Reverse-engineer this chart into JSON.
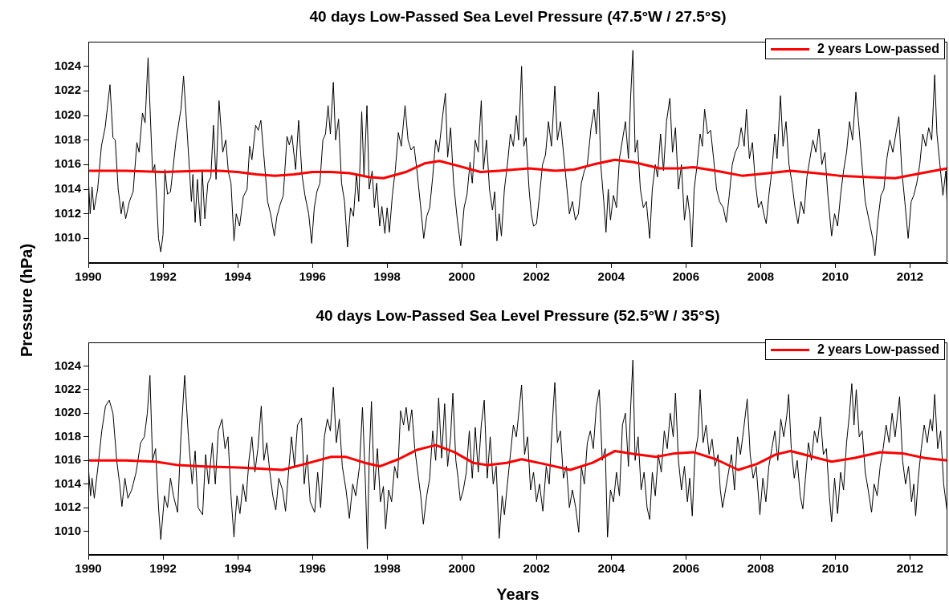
{
  "chart_data": [
    {
      "type": "line",
      "title": "40 days Low-Passed Sea Level Pressure (47.5°W / 27.5°S)",
      "ylabel": "Pressure (hPa)",
      "xlim": [
        1990,
        2013
      ],
      "xticks": [
        1990,
        1992,
        1994,
        1996,
        1998,
        2000,
        2002,
        2004,
        2006,
        2008,
        2010,
        2012
      ],
      "ylim": [
        1008,
        1026
      ],
      "yticks": [
        1010,
        1012,
        1014,
        1016,
        1018,
        1020,
        1022,
        1024
      ],
      "legend": "top right",
      "series": [
        {
          "color": "#000000",
          "x": [
            1990.0,
            1990.05,
            1990.1,
            1990.15,
            1990.25,
            1990.35,
            1990.45,
            1990.58,
            1990.66,
            1990.72,
            1990.8,
            1990.88,
            1990.93,
            1991.0,
            1991.1,
            1991.2,
            1991.3,
            1991.36,
            1991.45,
            1991.52,
            1991.6,
            1991.66,
            1991.72,
            1991.78,
            1991.88,
            1991.94,
            1992.0,
            1992.05,
            1992.12,
            1992.2,
            1992.35,
            1992.48,
            1992.55,
            1992.66,
            1992.76,
            1992.8,
            1992.86,
            1992.92,
            1993.0,
            1993.05,
            1993.12,
            1993.2,
            1993.28,
            1993.35,
            1993.42,
            1993.5,
            1993.6,
            1993.68,
            1993.75,
            1993.82,
            1993.9,
            1993.96,
            1994.05,
            1994.15,
            1994.25,
            1994.32,
            1994.38,
            1994.48,
            1994.55,
            1994.62,
            1994.72,
            1994.8,
            1994.88,
            1994.98,
            1995.05,
            1995.14,
            1995.22,
            1995.32,
            1995.38,
            1995.45,
            1995.55,
            1995.63,
            1995.72,
            1995.8,
            1995.9,
            1995.98,
            1996.05,
            1996.12,
            1996.2,
            1996.28,
            1996.35,
            1996.42,
            1996.48,
            1996.56,
            1996.62,
            1996.7,
            1996.78,
            1996.86,
            1996.94,
            1997.02,
            1997.1,
            1997.18,
            1997.24,
            1997.32,
            1997.38,
            1997.46,
            1997.52,
            1997.6,
            1997.66,
            1997.72,
            1997.8,
            1997.86,
            1997.94,
            1998.0,
            1998.06,
            1998.14,
            1998.22,
            1998.3,
            1998.38,
            1998.48,
            1998.56,
            1998.64,
            1998.72,
            1998.8,
            1998.9,
            1998.98,
            1999.06,
            1999.14,
            1999.22,
            1999.3,
            1999.38,
            1999.48,
            1999.56,
            1999.62,
            1999.7,
            1999.78,
            1999.88,
            1999.97,
            2000.06,
            2000.14,
            2000.22,
            2000.28,
            2000.36,
            2000.44,
            2000.52,
            2000.58,
            2000.66,
            2000.74,
            2000.82,
            2000.88,
            2000.94,
            2001.0,
            2001.06,
            2001.14,
            2001.22,
            2001.3,
            2001.38,
            2001.46,
            2001.52,
            2001.6,
            2001.66,
            2001.72,
            2001.8,
            2001.86,
            2001.92,
            2002.0,
            2002.08,
            2002.16,
            2002.24,
            2002.32,
            2002.4,
            2002.49,
            2002.56,
            2002.64,
            2002.72,
            2002.8,
            2002.88,
            2002.96,
            2003.04,
            2003.12,
            2003.2,
            2003.28,
            2003.36,
            2003.46,
            2003.54,
            2003.6,
            2003.66,
            2003.72,
            2003.8,
            2003.86,
            2003.92,
            2003.98,
            2004.06,
            2004.14,
            2004.22,
            2004.3,
            2004.38,
            2004.46,
            2004.52,
            2004.58,
            2004.64,
            2004.7,
            2004.78,
            2004.86,
            2004.94,
            2005.03,
            2005.1,
            2005.18,
            2005.24,
            2005.32,
            2005.4,
            2005.48,
            2005.57,
            2005.64,
            2005.72,
            2005.8,
            2005.88,
            2005.96,
            2006.04,
            2006.1,
            2006.16,
            2006.22,
            2006.3,
            2006.38,
            2006.44,
            2006.5,
            2006.58,
            2006.66,
            2006.74,
            2006.82,
            2006.9,
            2007.0,
            2007.08,
            2007.16,
            2007.24,
            2007.32,
            2007.4,
            2007.48,
            2007.56,
            2007.62,
            2007.7,
            2007.78,
            2007.86,
            2007.94,
            2008.02,
            2008.1,
            2008.15,
            2008.22,
            2008.3,
            2008.38,
            2008.44,
            2008.53,
            2008.6,
            2008.68,
            2008.76,
            2008.84,
            2008.92,
            2009.0,
            2009.08,
            2009.16,
            2009.24,
            2009.32,
            2009.4,
            2009.48,
            2009.56,
            2009.64,
            2009.72,
            2009.8,
            2009.9,
            2009.98,
            2010.06,
            2010.14,
            2010.22,
            2010.3,
            2010.38,
            2010.46,
            2010.55,
            2010.62,
            2010.7,
            2010.8,
            2010.9,
            2011.0,
            2011.06,
            2011.14,
            2011.22,
            2011.3,
            2011.38,
            2011.46,
            2011.54,
            2011.62,
            2011.7,
            2011.78,
            2011.86,
            2011.95,
            2012.03,
            2012.1,
            2012.18,
            2012.26,
            2012.34,
            2012.42,
            2012.5,
            2012.58,
            2012.66,
            2012.72,
            2012.8,
            2012.88,
            2012.96,
            2013.0
          ],
          "values": [
            1015.0,
            1012.0,
            1014.2,
            1012.3,
            1014.0,
            1017.5,
            1019.0,
            1022.5,
            1018.2,
            1018.0,
            1014.0,
            1012.0,
            1013.0,
            1011.6,
            1013.0,
            1013.8,
            1017.8,
            1017.0,
            1020.2,
            1019.4,
            1024.7,
            1020.0,
            1015.4,
            1016.0,
            1010.0,
            1008.9,
            1010.3,
            1015.6,
            1013.6,
            1013.8,
            1018.0,
            1020.5,
            1023.2,
            1018.0,
            1013.0,
            1015.2,
            1011.3,
            1014.8,
            1011.0,
            1015.5,
            1011.6,
            1014.5,
            1015.0,
            1019.2,
            1014.8,
            1021.2,
            1017.0,
            1018.0,
            1015.4,
            1014.5,
            1009.8,
            1012.0,
            1011.0,
            1013.4,
            1014.0,
            1017.5,
            1016.4,
            1019.2,
            1018.8,
            1019.6,
            1016.0,
            1013.0,
            1012.0,
            1010.2,
            1011.8,
            1012.8,
            1013.5,
            1018.3,
            1017.6,
            1018.4,
            1015.6,
            1019.6,
            1015.2,
            1013.5,
            1012.0,
            1009.6,
            1012.5,
            1013.8,
            1014.5,
            1018.0,
            1018.5,
            1020.8,
            1018.5,
            1022.7,
            1018.0,
            1019.7,
            1014.5,
            1013.0,
            1009.3,
            1012.5,
            1011.8,
            1015.3,
            1013.0,
            1020.3,
            1015.0,
            1020.8,
            1014.0,
            1015.5,
            1012.5,
            1014.5,
            1011.0,
            1012.6,
            1010.4,
            1012.5,
            1010.5,
            1013.5,
            1015.6,
            1018.6,
            1017.5,
            1020.8,
            1018.0,
            1017.2,
            1017.5,
            1015.5,
            1012.5,
            1010.0,
            1011.8,
            1012.5,
            1015.0,
            1018.0,
            1017.0,
            1019.8,
            1021.8,
            1016.6,
            1019.0,
            1014.5,
            1011.5,
            1009.4,
            1012.5,
            1013.6,
            1016.2,
            1014.5,
            1018.0,
            1017.0,
            1021.2,
            1015.6,
            1018.0,
            1014.0,
            1012.3,
            1013.8,
            1009.8,
            1012.0,
            1010.2,
            1014.0,
            1016.0,
            1018.5,
            1017.5,
            1020.0,
            1018.0,
            1024.0,
            1017.5,
            1018.2,
            1014.0,
            1012.0,
            1011.0,
            1011.2,
            1013.5,
            1016.0,
            1016.8,
            1019.5,
            1017.5,
            1022.4,
            1018.0,
            1019.5,
            1017.0,
            1014.5,
            1012.0,
            1013.0,
            1011.5,
            1012.0,
            1014.5,
            1015.5,
            1016.0,
            1019.0,
            1020.5,
            1018.5,
            1021.9,
            1016.0,
            1013.0,
            1010.5,
            1014.0,
            1011.5,
            1013.5,
            1012.5,
            1016.5,
            1018.0,
            1019.5,
            1016.5,
            1021.5,
            1025.3,
            1017.0,
            1018.0,
            1014.0,
            1012.5,
            1013.0,
            1010.0,
            1014.0,
            1016.0,
            1015.0,
            1018.5,
            1015.5,
            1019.5,
            1021.4,
            1017.0,
            1019.0,
            1014.0,
            1016.0,
            1011.5,
            1013.5,
            1012.0,
            1009.3,
            1014.0,
            1016.0,
            1018.5,
            1017.5,
            1020.5,
            1018.5,
            1018.8,
            1016.5,
            1014.0,
            1013.0,
            1012.5,
            1011.3,
            1013.5,
            1016.0,
            1017.0,
            1017.5,
            1019.0,
            1017.5,
            1020.5,
            1016.5,
            1017.8,
            1014.5,
            1012.5,
            1013.0,
            1011.8,
            1011.2,
            1013.5,
            1015.5,
            1018.5,
            1016.5,
            1021.6,
            1017.5,
            1019.5,
            1016.0,
            1014.5,
            1012.5,
            1011.2,
            1013.0,
            1012.0,
            1015.0,
            1016.5,
            1018.0,
            1017.0,
            1018.9,
            1016.0,
            1017.0,
            1013.5,
            1010.2,
            1012.0,
            1011.0,
            1013.5,
            1015.5,
            1017.0,
            1019.5,
            1018.0,
            1021.9,
            1019.5,
            1016.5,
            1013.0,
            1011.5,
            1010.0,
            1008.6,
            1011.5,
            1013.5,
            1014.0,
            1016.5,
            1018.0,
            1017.0,
            1018.5,
            1019.9,
            1015.5,
            1013.0,
            1010.0,
            1013.0,
            1013.5,
            1014.5,
            1016.0,
            1018.5,
            1017.5,
            1019.0,
            1018.0,
            1023.3,
            1018.5,
            1016.0,
            1013.5,
            1015.5,
            1012.0
          ]
        },
        {
          "name": "2 years Low-passed",
          "color": "#ff0000",
          "x": [
            1990,
            1991,
            1992,
            1993,
            1993.5,
            1994,
            1994.5,
            1995,
            1995.5,
            1996,
            1996.5,
            1997,
            1997.5,
            1997.9,
            1998.5,
            1999,
            1999.4,
            1999.9,
            2000.5,
            2001,
            2001.8,
            2002.5,
            2003,
            2003.5,
            2004.1,
            2004.6,
            2005.3,
            2005.8,
            2006.2,
            2006.8,
            2007.5,
            2008.2,
            2008.8,
            2009.5,
            2010.1,
            2010.8,
            2011.6,
            2012.3,
            2013
          ],
          "values": [
            1015.5,
            1015.5,
            1015.4,
            1015.5,
            1015.5,
            1015.4,
            1015.2,
            1015.1,
            1015.2,
            1015.4,
            1015.4,
            1015.3,
            1015.0,
            1014.9,
            1015.4,
            1016.1,
            1016.3,
            1015.9,
            1015.4,
            1015.5,
            1015.7,
            1015.5,
            1015.6,
            1016.0,
            1016.4,
            1016.2,
            1015.7,
            1015.7,
            1015.8,
            1015.5,
            1015.1,
            1015.3,
            1015.5,
            1015.3,
            1015.1,
            1015.0,
            1014.9,
            1015.3,
            1015.7
          ]
        }
      ]
    },
    {
      "type": "line",
      "title": "40 days Low-Passed Sea Level Pressure (52.5°W / 35°S)",
      "xlabel": "Years",
      "xlim": [
        1990,
        2013
      ],
      "xticks": [
        1990,
        1992,
        1994,
        1996,
        1998,
        2000,
        2002,
        2004,
        2006,
        2008,
        2010,
        2012
      ],
      "ylim": [
        1008,
        1026
      ],
      "yticks": [
        1010,
        1012,
        1014,
        1016,
        1018,
        1020,
        1022,
        1024
      ],
      "legend": "top right",
      "series": [
        {
          "color": "#000000",
          "x": [
            1990.0,
            1990.06,
            1990.1,
            1990.16,
            1990.26,
            1990.36,
            1990.46,
            1990.56,
            1990.66,
            1990.76,
            1990.84,
            1990.9,
            1990.98,
            1991.06,
            1991.16,
            1991.28,
            1991.4,
            1991.5,
            1991.58,
            1991.65,
            1991.72,
            1991.8,
            1991.88,
            1991.94,
            1992.04,
            1992.12,
            1992.2,
            1992.28,
            1992.39,
            1992.48,
            1992.58,
            1992.68,
            1992.78,
            1992.86,
            1992.94,
            1993.06,
            1993.14,
            1993.22,
            1993.32,
            1993.4,
            1993.48,
            1993.58,
            1993.66,
            1993.74,
            1993.82,
            1993.9,
            1993.98,
            1994.06,
            1994.14,
            1994.22,
            1994.3,
            1994.38,
            1994.46,
            1994.54,
            1994.63,
            1994.7,
            1994.78,
            1994.86,
            1994.94,
            1995.02,
            1995.1,
            1995.2,
            1995.28,
            1995.36,
            1995.44,
            1995.52,
            1995.6,
            1995.71,
            1995.78,
            1995.86,
            1995.94,
            1996.06,
            1996.14,
            1996.22,
            1996.32,
            1996.4,
            1996.48,
            1996.56,
            1996.64,
            1996.72,
            1996.8,
            1996.9,
            1996.99,
            1997.08,
            1997.16,
            1997.26,
            1997.34,
            1997.42,
            1997.47,
            1997.52,
            1997.58,
            1997.66,
            1997.74,
            1997.82,
            1997.9,
            1997.96,
            1998.04,
            1998.12,
            1998.2,
            1998.28,
            1998.36,
            1998.44,
            1998.51,
            1998.58,
            1998.66,
            1998.74,
            1998.82,
            1998.9,
            1998.97,
            1999.06,
            1999.14,
            1999.22,
            1999.3,
            1999.38,
            1999.46,
            1999.54,
            1999.62,
            1999.7,
            1999.76,
            1999.84,
            1999.9,
            1999.96,
            2000.04,
            2000.12,
            2000.2,
            2000.28,
            2000.36,
            2000.44,
            2000.52,
            2000.6,
            2000.68,
            2000.76,
            2000.84,
            2000.92,
            2001.0,
            2001.08,
            2001.14,
            2001.22,
            2001.3,
            2001.38,
            2001.46,
            2001.54,
            2001.6,
            2001.68,
            2001.76,
            2001.84,
            2001.92,
            2002.0,
            2002.08,
            2002.17,
            2002.26,
            2002.34,
            2002.42,
            2002.49,
            2002.56,
            2002.64,
            2002.72,
            2002.8,
            2002.88,
            2002.96,
            2003.05,
            2003.13,
            2003.2,
            2003.28,
            2003.36,
            2003.44,
            2003.52,
            2003.6,
            2003.68,
            2003.76,
            2003.84,
            2003.9,
            2003.98,
            2004.06,
            2004.14,
            2004.22,
            2004.3,
            2004.38,
            2004.46,
            2004.52,
            2004.58,
            2004.64,
            2004.72,
            2004.8,
            2004.88,
            2004.96,
            2005.03,
            2005.1,
            2005.18,
            2005.26,
            2005.34,
            2005.42,
            2005.5,
            2005.58,
            2005.66,
            2005.72,
            2005.8,
            2005.88,
            2005.96,
            2006.04,
            2006.1,
            2006.17,
            2006.24,
            2006.32,
            2006.38,
            2006.46,
            2006.54,
            2006.62,
            2006.7,
            2006.78,
            2006.86,
            2006.92,
            2006.98,
            2007.06,
            2007.14,
            2007.22,
            2007.3,
            2007.38,
            2007.46,
            2007.54,
            2007.64,
            2007.72,
            2007.8,
            2007.88,
            2007.98,
            2008.06,
            2008.14,
            2008.22,
            2008.3,
            2008.38,
            2008.46,
            2008.54,
            2008.62,
            2008.7,
            2008.75,
            2008.82,
            2008.9,
            2008.98,
            2009.06,
            2009.13,
            2009.2,
            2009.28,
            2009.36,
            2009.44,
            2009.52,
            2009.6,
            2009.68,
            2009.76,
            2009.84,
            2009.9,
            2009.98,
            2010.06,
            2010.14,
            2010.22,
            2010.3,
            2010.38,
            2010.44,
            2010.5,
            2010.56,
            2010.64,
            2010.72,
            2010.8,
            2010.88,
            2010.97,
            2011.04,
            2011.12,
            2011.2,
            2011.28,
            2011.36,
            2011.44,
            2011.52,
            2011.6,
            2011.72,
            2011.8,
            2011.88,
            2011.96,
            2012.04,
            2012.1,
            2012.15,
            2012.22,
            2012.3,
            2012.38,
            2012.46,
            2012.54,
            2012.6,
            2012.66,
            2012.74,
            2012.82,
            2012.9,
            2013.0
          ],
          "values": [
            1015.5,
            1013.0,
            1014.5,
            1012.8,
            1015.5,
            1018.5,
            1020.6,
            1021.1,
            1020.0,
            1016.0,
            1014.0,
            1012.1,
            1014.5,
            1012.8,
            1013.5,
            1015.0,
            1017.5,
            1018.0,
            1020.0,
            1023.2,
            1016.0,
            1017.0,
            1012.0,
            1009.3,
            1013.0,
            1012.0,
            1014.5,
            1013.0,
            1011.6,
            1018.0,
            1023.2,
            1018.0,
            1014.0,
            1016.8,
            1012.0,
            1011.4,
            1016.5,
            1014.0,
            1017.5,
            1014.0,
            1018.5,
            1019.5,
            1017.0,
            1018.0,
            1013.0,
            1009.5,
            1013.0,
            1011.5,
            1014.0,
            1012.5,
            1016.0,
            1018.0,
            1015.0,
            1017.0,
            1020.6,
            1016.0,
            1017.5,
            1015.0,
            1013.0,
            1011.8,
            1014.5,
            1013.5,
            1011.7,
            1015.0,
            1018.0,
            1015.5,
            1019.0,
            1019.6,
            1014.0,
            1016.5,
            1012.5,
            1011.6,
            1015.0,
            1012.0,
            1018.0,
            1019.5,
            1018.5,
            1022.2,
            1017.5,
            1019.5,
            1015.5,
            1013.5,
            1011.1,
            1014.0,
            1013.0,
            1015.5,
            1020.5,
            1014.0,
            1008.5,
            1016.0,
            1021.0,
            1013.5,
            1017.0,
            1012.5,
            1013.8,
            1010.2,
            1013.5,
            1012.5,
            1015.5,
            1014.5,
            1020.2,
            1019.0,
            1020.5,
            1018.5,
            1020.3,
            1017.0,
            1015.0,
            1013.0,
            1010.6,
            1013.0,
            1014.5,
            1018.5,
            1016.0,
            1021.3,
            1016.2,
            1020.8,
            1015.5,
            1018.0,
            1021.7,
            1016.0,
            1014.5,
            1012.6,
            1013.5,
            1015.0,
            1018.5,
            1014.5,
            1018.8,
            1015.0,
            1019.0,
            1021.1,
            1014.5,
            1018.0,
            1014.0,
            1015.5,
            1009.4,
            1013.0,
            1011.4,
            1014.0,
            1016.5,
            1019.0,
            1018.0,
            1020.5,
            1022.4,
            1016.5,
            1018.0,
            1013.5,
            1015.0,
            1012.5,
            1014.0,
            1011.7,
            1015.5,
            1014.0,
            1019.0,
            1022.6,
            1017.5,
            1018.5,
            1014.5,
            1015.5,
            1012.0,
            1013.5,
            1012.0,
            1009.9,
            1015.5,
            1014.0,
            1017.5,
            1018.5,
            1017.0,
            1020.5,
            1022.0,
            1016.0,
            1017.0,
            1009.5,
            1013.5,
            1012.5,
            1015.0,
            1013.0,
            1019.0,
            1020.0,
            1015.5,
            1020.5,
            1024.5,
            1016.0,
            1018.0,
            1013.5,
            1015.0,
            1012.0,
            1011.0,
            1015.0,
            1013.0,
            1016.5,
            1015.0,
            1018.5,
            1017.0,
            1020.0,
            1018.0,
            1021.7,
            1016.0,
            1013.5,
            1015.5,
            1012.5,
            1014.5,
            1011.3,
            1016.5,
            1018.0,
            1022.0,
            1017.5,
            1019.0,
            1016.5,
            1017.8,
            1015.5,
            1016.5,
            1013.5,
            1012.0,
            1013.5,
            1015.0,
            1016.5,
            1013.5,
            1018.0,
            1016.5,
            1018.5,
            1021.2,
            1016.5,
            1014.5,
            1015.5,
            1011.4,
            1014.5,
            1012.5,
            1015.5,
            1017.0,
            1018.5,
            1016.0,
            1019.5,
            1018.0,
            1019.8,
            1021.6,
            1017.0,
            1014.5,
            1016.0,
            1013.0,
            1011.9,
            1014.5,
            1017.5,
            1016.0,
            1018.5,
            1017.5,
            1019.7,
            1016.5,
            1017.0,
            1013.0,
            1010.8,
            1014.5,
            1011.5,
            1015.0,
            1013.5,
            1017.5,
            1020.0,
            1022.5,
            1019.0,
            1022.0,
            1018.0,
            1018.5,
            1015.0,
            1013.5,
            1011.6,
            1014.0,
            1013.0,
            1015.5,
            1017.0,
            1019.0,
            1017.5,
            1020.0,
            1018.0,
            1021.4,
            1016.0,
            1014.0,
            1015.5,
            1012.5,
            1014.0,
            1011.3,
            1014.5,
            1017.0,
            1019.0,
            1017.5,
            1019.5,
            1018.5,
            1021.6,
            1017.0,
            1018.5,
            1014.0,
            1011.5
          ]
        },
        {
          "name": "2 years Low-passed",
          "color": "#ff0000",
          "x": [
            1990,
            1991,
            1991.8,
            1992.4,
            1993,
            1994,
            1994.6,
            1995.2,
            1995.8,
            1996.5,
            1996.9,
            1997.4,
            1997.8,
            1998.3,
            1998.8,
            1999.3,
            1999.8,
            2000.3,
            2000.7,
            2001.2,
            2001.6,
            2002.2,
            2002.9,
            2003.5,
            2004.1,
            2004.7,
            2005.2,
            2005.7,
            2006.2,
            2006.8,
            2007.4,
            2007.9,
            2008.4,
            2008.8,
            2009.4,
            2009.9,
            2010.5,
            2011.2,
            2011.8,
            2012.4,
            2013
          ],
          "values": [
            1016.0,
            1016.0,
            1015.9,
            1015.6,
            1015.5,
            1015.4,
            1015.3,
            1015.2,
            1015.7,
            1016.3,
            1016.3,
            1015.8,
            1015.5,
            1016.1,
            1016.9,
            1017.3,
            1016.7,
            1015.8,
            1015.6,
            1015.8,
            1016.1,
            1015.7,
            1015.2,
            1015.8,
            1016.8,
            1016.5,
            1016.3,
            1016.6,
            1016.7,
            1016.1,
            1015.2,
            1015.7,
            1016.5,
            1016.8,
            1016.3,
            1015.9,
            1016.2,
            1016.7,
            1016.6,
            1016.2,
            1016.0
          ]
        }
      ]
    }
  ]
}
